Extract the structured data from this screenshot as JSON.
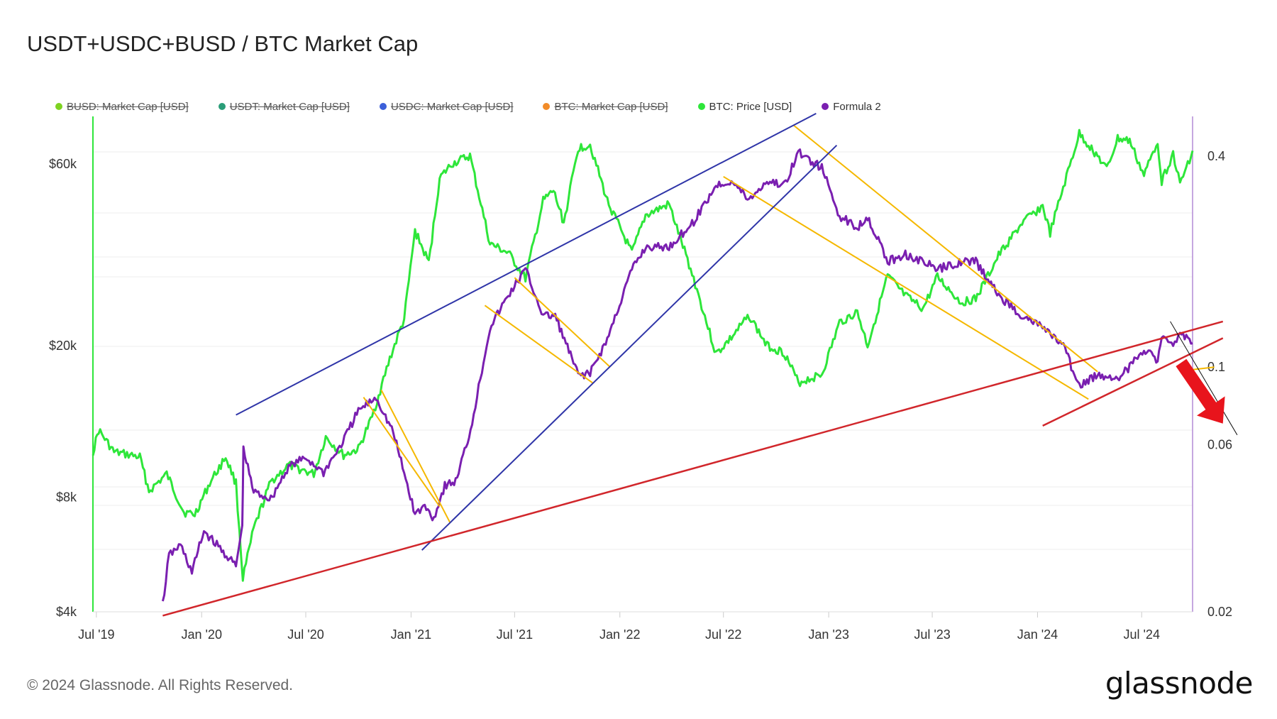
{
  "title": "USDT+USDC+BUSD / BTC Market Cap",
  "legend": [
    {
      "label": "BUSD: Market Cap [USD]",
      "color": "#7ed321",
      "active": false
    },
    {
      "label": "USDT: Market Cap [USD]",
      "color": "#2a9d78",
      "active": false
    },
    {
      "label": "USDC: Market Cap [USD]",
      "color": "#3b5fd9",
      "active": false
    },
    {
      "label": "BTC: Market Cap [USD]",
      "color": "#f28c28",
      "active": false
    },
    {
      "label": "BTC: Price [USD]",
      "color": "#2ee63a",
      "active": true
    },
    {
      "label": "Formula 2",
      "color": "#7a1fb0",
      "active": true
    }
  ],
  "footer": "© 2024 Glassnode. All Rights Reserved.",
  "logo": "glassnode",
  "chart_data": {
    "type": "line",
    "x_ticks": [
      "Jul '19",
      "Jan '20",
      "Jul '20",
      "Jan '21",
      "Jul '21",
      "Jan '22",
      "Jul '22",
      "Jan '23",
      "Jul '23",
      "Jan '24",
      "Jul '24"
    ],
    "x_range": [
      "2019-06-25",
      "2024-09-28"
    ],
    "y_left": {
      "scale": "log",
      "range": [
        4000,
        80000
      ],
      "ticks": [
        "$4k",
        "$8k",
        "$20k",
        "$60k"
      ],
      "tick_values": [
        4000,
        8000,
        20000,
        60000
      ]
    },
    "y_right": {
      "scale": "log",
      "range": [
        0.02,
        0.52
      ],
      "ticks": [
        "0.02",
        "0.06",
        "0.1",
        "0.4"
      ],
      "tick_values": [
        0.02,
        0.06,
        0.1,
        0.4
      ]
    },
    "series": [
      {
        "name": "BTC: Price [USD]",
        "axis": "left",
        "color": "#2ee63a",
        "points": [
          [
            "2019-06-25",
            10500
          ],
          [
            "2019-07-05",
            12000
          ],
          [
            "2019-08-01",
            10500
          ],
          [
            "2019-09-15",
            10200
          ],
          [
            "2019-10-01",
            8300
          ],
          [
            "2019-11-01",
            9200
          ],
          [
            "2019-12-01",
            7300
          ],
          [
            "2019-12-20",
            7200
          ],
          [
            "2020-01-15",
            8700
          ],
          [
            "2020-02-12",
            10200
          ],
          [
            "2020-03-01",
            8700
          ],
          [
            "2020-03-13",
            4900
          ],
          [
            "2020-04-01",
            6600
          ],
          [
            "2020-05-01",
            8800
          ],
          [
            "2020-06-01",
            9700
          ],
          [
            "2020-07-15",
            9200
          ],
          [
            "2020-08-05",
            11500
          ],
          [
            "2020-09-05",
            10300
          ],
          [
            "2020-10-01",
            10700
          ],
          [
            "2020-10-25",
            13000
          ],
          [
            "2020-11-25",
            18500
          ],
          [
            "2020-12-20",
            23500
          ],
          [
            "2021-01-08",
            40000
          ],
          [
            "2021-02-01",
            33000
          ],
          [
            "2021-02-20",
            55000
          ],
          [
            "2021-03-13",
            60000
          ],
          [
            "2021-04-14",
            63000
          ],
          [
            "2021-05-19",
            37000
          ],
          [
            "2021-06-20",
            35000
          ],
          [
            "2021-07-20",
            30000
          ],
          [
            "2021-08-20",
            48000
          ],
          [
            "2021-09-07",
            51000
          ],
          [
            "2021-09-25",
            42000
          ],
          [
            "2021-10-20",
            66000
          ],
          [
            "2021-11-10",
            67500
          ],
          [
            "2021-12-10",
            48000
          ],
          [
            "2022-01-22",
            35000
          ],
          [
            "2022-02-15",
            44000
          ],
          [
            "2022-03-28",
            47000
          ],
          [
            "2022-05-10",
            30000
          ],
          [
            "2022-06-18",
            19000
          ],
          [
            "2022-07-15",
            21000
          ],
          [
            "2022-08-15",
            24000
          ],
          [
            "2022-09-15",
            20000
          ],
          [
            "2022-10-15",
            19200
          ],
          [
            "2022-11-09",
            16000
          ],
          [
            "2022-12-20",
            16800
          ],
          [
            "2023-01-20",
            23000
          ],
          [
            "2023-02-20",
            24500
          ],
          [
            "2023-03-10",
            20000
          ],
          [
            "2023-04-14",
            30500
          ],
          [
            "2023-05-15",
            27000
          ],
          [
            "2023-06-15",
            25000
          ],
          [
            "2023-07-10",
            30300
          ],
          [
            "2023-08-20",
            26000
          ],
          [
            "2023-09-15",
            26500
          ],
          [
            "2023-10-25",
            34500
          ],
          [
            "2023-12-05",
            42000
          ],
          [
            "2024-01-10",
            46500
          ],
          [
            "2024-01-23",
            39500
          ],
          [
            "2024-02-15",
            52000
          ],
          [
            "2024-03-14",
            72000
          ],
          [
            "2024-04-15",
            63000
          ],
          [
            "2024-05-01",
            58000
          ],
          [
            "2024-05-20",
            70000
          ],
          [
            "2024-06-10",
            69000
          ],
          [
            "2024-07-05",
            56000
          ],
          [
            "2024-07-29",
            69000
          ],
          [
            "2024-08-05",
            54000
          ],
          [
            "2024-08-25",
            64000
          ],
          [
            "2024-09-06",
            53000
          ],
          [
            "2024-09-28",
            65000
          ]
        ]
      },
      {
        "name": "Formula 2",
        "axis": "right",
        "color": "#7a1fb0",
        "points": [
          [
            "2019-10-25",
            0.021
          ],
          [
            "2019-11-05",
            0.029
          ],
          [
            "2019-11-25",
            0.031
          ],
          [
            "2019-12-15",
            0.026
          ],
          [
            "2020-01-05",
            0.034
          ],
          [
            "2020-02-05",
            0.03
          ],
          [
            "2020-03-01",
            0.027
          ],
          [
            "2020-03-12",
            0.035
          ],
          [
            "2020-03-14",
            0.058
          ],
          [
            "2020-04-01",
            0.044
          ],
          [
            "2020-05-01",
            0.042
          ],
          [
            "2020-06-01",
            0.052
          ],
          [
            "2020-07-01",
            0.055
          ],
          [
            "2020-08-01",
            0.05
          ],
          [
            "2020-09-01",
            0.06
          ],
          [
            "2020-10-01",
            0.075
          ],
          [
            "2020-11-01",
            0.082
          ],
          [
            "2020-12-01",
            0.065
          ],
          [
            "2021-01-08",
            0.038
          ],
          [
            "2021-01-25",
            0.04
          ],
          [
            "2021-02-10",
            0.037
          ],
          [
            "2021-03-01",
            0.046
          ],
          [
            "2021-03-20",
            0.047
          ],
          [
            "2021-04-15",
            0.066
          ],
          [
            "2021-05-19",
            0.13
          ],
          [
            "2021-06-20",
            0.16
          ],
          [
            "2021-07-20",
            0.19
          ],
          [
            "2021-08-20",
            0.14
          ],
          [
            "2021-09-10",
            0.14
          ],
          [
            "2021-10-20",
            0.095
          ],
          [
            "2021-11-10",
            0.096
          ],
          [
            "2021-12-10",
            0.12
          ],
          [
            "2022-01-22",
            0.19
          ],
          [
            "2022-02-15",
            0.22
          ],
          [
            "2022-03-28",
            0.22
          ],
          [
            "2022-05-10",
            0.26
          ],
          [
            "2022-06-18",
            0.33
          ],
          [
            "2022-07-15",
            0.34
          ],
          [
            "2022-08-15",
            0.3
          ],
          [
            "2022-09-15",
            0.34
          ],
          [
            "2022-10-15",
            0.33
          ],
          [
            "2022-11-09",
            0.41
          ],
          [
            "2022-12-20",
            0.37
          ],
          [
            "2023-01-20",
            0.27
          ],
          [
            "2023-02-20",
            0.25
          ],
          [
            "2023-03-10",
            0.27
          ],
          [
            "2023-04-14",
            0.2
          ],
          [
            "2023-05-15",
            0.21
          ],
          [
            "2023-06-15",
            0.2
          ],
          [
            "2023-07-10",
            0.19
          ],
          [
            "2023-08-20",
            0.2
          ],
          [
            "2023-09-15",
            0.2
          ],
          [
            "2023-10-25",
            0.16
          ],
          [
            "2023-12-05",
            0.14
          ],
          [
            "2024-01-10",
            0.13
          ],
          [
            "2024-02-15",
            0.115
          ],
          [
            "2024-03-14",
            0.088
          ],
          [
            "2024-04-15",
            0.095
          ],
          [
            "2024-05-20",
            0.093
          ],
          [
            "2024-06-10",
            0.1
          ],
          [
            "2024-07-05",
            0.113
          ],
          [
            "2024-07-29",
            0.105
          ],
          [
            "2024-08-05",
            0.121
          ],
          [
            "2024-08-25",
            0.114
          ],
          [
            "2024-09-06",
            0.127
          ],
          [
            "2024-09-28",
            0.117
          ]
        ]
      }
    ],
    "annotations": {
      "trend_lines_blue": [
        [
          [
            "2020-03-01",
            0.073
          ],
          [
            "2022-12-10",
            0.53
          ]
        ],
        [
          [
            "2021-01-20",
            0.03
          ],
          [
            "2023-01-15",
            0.43
          ]
        ]
      ],
      "trend_lines_red": [
        [
          [
            "2019-10-25",
            0.0195
          ],
          [
            "2024-11-20",
            0.135
          ]
        ],
        [
          [
            "2024-01-10",
            0.068
          ],
          [
            "2024-11-20",
            0.121
          ]
        ]
      ],
      "channel_lines_orange": [
        [
          [
            "2020-10-10",
            0.082
          ],
          [
            "2021-02-20",
            0.04
          ]
        ],
        [
          [
            "2020-11-10",
            0.086
          ],
          [
            "2021-03-10",
            0.036
          ]
        ],
        [
          [
            "2021-05-10",
            0.15
          ],
          [
            "2021-11-15",
            0.09
          ]
        ],
        [
          [
            "2021-07-01",
            0.18
          ],
          [
            "2021-12-15",
            0.1
          ]
        ],
        [
          [
            "2022-07-01",
            0.35
          ],
          [
            "2024-03-30",
            0.081
          ]
        ],
        [
          [
            "2022-11-01",
            0.49
          ],
          [
            "2024-04-15",
            0.097
          ]
        ],
        [
          [
            "2024-09-20",
            0.098
          ],
          [
            "2024-11-05",
            0.1
          ]
        ]
      ],
      "thin_black_line": [
        [
          "2024-08-20",
          0.135
        ],
        [
          "2024-12-15",
          0.064
        ]
      ],
      "red_arrow": {
        "from": [
          "2024-09-08",
          0.103
        ],
        "to": [
          "2024-11-20",
          0.069
        ]
      }
    }
  }
}
